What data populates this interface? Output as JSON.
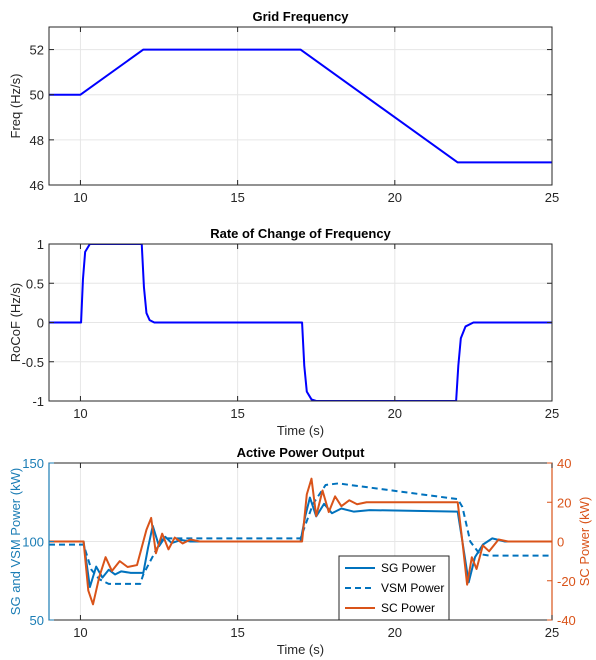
{
  "chart_data": [
    {
      "type": "line",
      "title": "Grid Frequency",
      "xlabel": "",
      "ylabel": "Freq (Hz/s)",
      "xlim": [
        9,
        25
      ],
      "ylim": [
        46,
        53
      ],
      "xticks": [
        10,
        15,
        20,
        25
      ],
      "yticks": [
        46,
        48,
        50,
        52
      ],
      "grid": true,
      "series": [
        {
          "color": "#0000FF",
          "style": "solid",
          "x": [
            9,
            10,
            12,
            17,
            22,
            25
          ],
          "y": [
            50,
            50,
            52,
            52,
            47,
            47
          ]
        }
      ]
    },
    {
      "type": "line",
      "title": "Rate of Change of Frequency",
      "xlabel": "Time (s)",
      "ylabel": "RoCoF (Hz/s)",
      "xlim": [
        9,
        25
      ],
      "ylim": [
        -1,
        1
      ],
      "xticks": [
        10,
        15,
        20,
        25
      ],
      "yticks": [
        -1,
        -0.5,
        0,
        0.5,
        1
      ],
      "grid": true,
      "series": [
        {
          "color": "#0000FF",
          "style": "solid",
          "x": [
            9,
            10.02,
            10.08,
            10.15,
            10.3,
            11.95,
            12.02,
            12.1,
            12.2,
            12.35,
            17.05,
            17.12,
            17.2,
            17.35,
            17.5,
            21.95,
            22.02,
            22.1,
            22.25,
            22.5,
            25
          ],
          "y": [
            0,
            0,
            0.55,
            0.9,
            1,
            1,
            0.45,
            0.12,
            0.03,
            0,
            0,
            -0.55,
            -0.88,
            -0.98,
            -1,
            -1,
            -0.55,
            -0.2,
            -0.05,
            0,
            0
          ]
        }
      ]
    },
    {
      "type": "line",
      "title": "Active Power Output",
      "xlabel": "Time (s)",
      "ylabel": "SG and VSM Power (kW)",
      "ylabel_right": "SC Power (kW)",
      "xlim": [
        9,
        25
      ],
      "ylim": [
        50,
        150
      ],
      "ylim_right": [
        -40,
        40
      ],
      "xticks": [
        10,
        15,
        20,
        25
      ],
      "yticks": [
        50,
        100,
        150
      ],
      "yticks_right": [
        -40,
        -20,
        0,
        20,
        40
      ],
      "grid": true,
      "legend": "bottom-right",
      "left_axis_color": "#1B7DB5",
      "right_axis_color": "#D95319",
      "series": [
        {
          "name": "SG Power",
          "axis": "left",
          "color": "#0072BD",
          "style": "solid",
          "x": [
            9,
            10.1,
            10.3,
            10.5,
            10.7,
            10.9,
            11.1,
            11.3,
            11.6,
            12.0,
            12.15,
            12.3,
            12.5,
            12.7,
            12.9,
            13.2,
            13.5,
            14,
            17.0,
            17.15,
            17.3,
            17.5,
            17.75,
            18.0,
            18.3,
            18.7,
            19.2,
            22.0,
            22.15,
            22.35,
            22.55,
            22.8,
            23.1,
            23.5,
            25
          ],
          "y": [
            100,
            100,
            71,
            84,
            77,
            82,
            79,
            81,
            80,
            80,
            96,
            110,
            97,
            103,
            99,
            101,
            100,
            100,
            100,
            116,
            128,
            116,
            124,
            118,
            121,
            119,
            120,
            119,
            100,
            74,
            90,
            98,
            102,
            100,
            100
          ]
        },
        {
          "name": "VSM Power",
          "axis": "left",
          "color": "#0072BD",
          "style": "dashed",
          "x": [
            9,
            10.1,
            10.35,
            10.6,
            10.9,
            11.2,
            11.9,
            12.0,
            12.6,
            13,
            17.0,
            17.4,
            17.8,
            18.2,
            22.0,
            22.15,
            22.4,
            22.7,
            23,
            25
          ],
          "y": [
            98,
            98,
            82,
            76,
            73,
            73,
            73,
            79,
            102,
            102,
            102,
            124,
            136,
            137,
            127,
            122,
            100,
            92,
            91,
            91
          ]
        },
        {
          "name": "SC Power",
          "axis": "right",
          "color": "#D95319",
          "style": "solid",
          "x": [
            9,
            10.1,
            10.25,
            10.4,
            10.6,
            10.8,
            11.0,
            11.25,
            11.5,
            11.8,
            12.1,
            12.25,
            12.4,
            12.6,
            12.8,
            13.0,
            13.25,
            13.5,
            13.8,
            14.2,
            17.05,
            17.2,
            17.35,
            17.5,
            17.7,
            17.9,
            18.1,
            18.3,
            18.55,
            18.8,
            19.1,
            19.5,
            22.0,
            22.15,
            22.3,
            22.45,
            22.6,
            22.8,
            23.0,
            23.3,
            23.6,
            25
          ],
          "y": [
            0,
            0,
            -25,
            -32,
            -18,
            -8,
            -15,
            -10,
            -13,
            -12,
            6,
            12,
            -6,
            4,
            -4,
            2,
            -1,
            1,
            0,
            0,
            0,
            24,
            32,
            13,
            26,
            15,
            23,
            18,
            21,
            19,
            20,
            20,
            20,
            0,
            -22,
            -8,
            -14,
            -2,
            -5,
            1,
            0,
            0
          ]
        }
      ]
    }
  ]
}
